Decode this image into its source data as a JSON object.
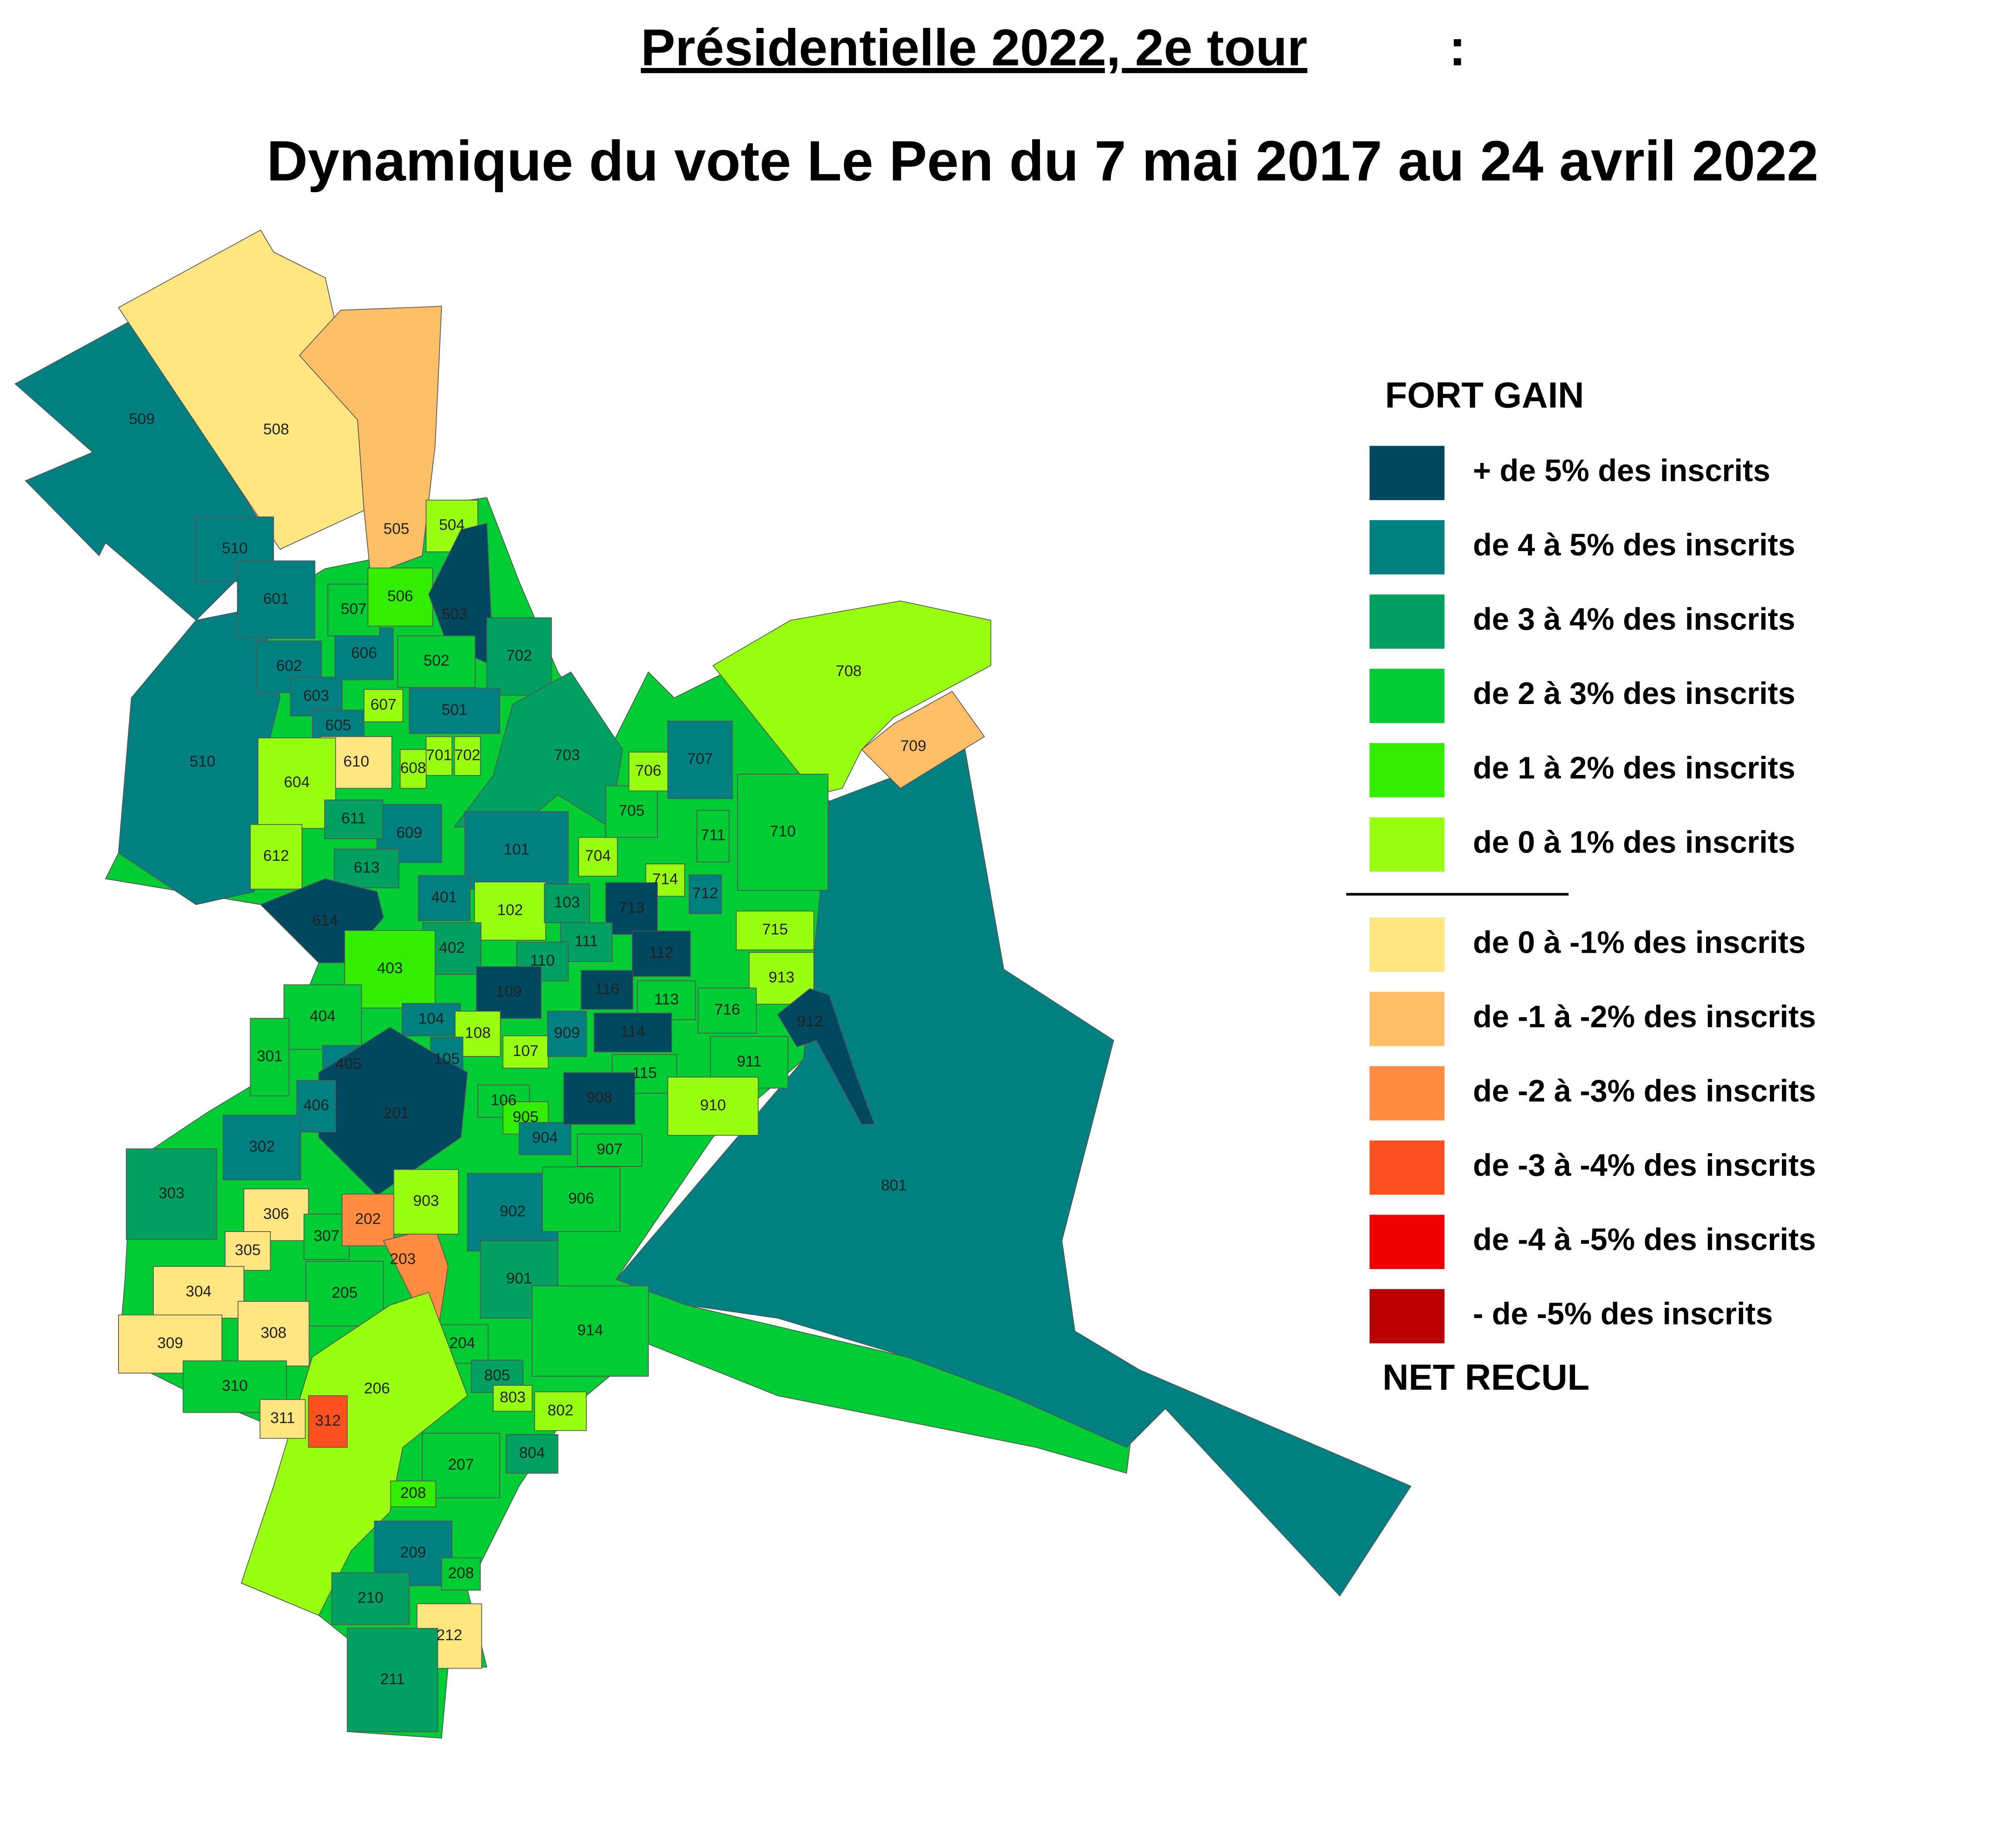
{
  "title": "Présidentielle 2022, 2e tour",
  "title_colon": ":",
  "subtitle": "Dynamique du vote Le Pen du 7 mai 2017 au 24 avril 2022",
  "legend": {
    "header": "FORT GAIN",
    "footer": "NET RECUL",
    "gains": [
      {
        "label": "+ de 5% des inscrits",
        "color": "#004860"
      },
      {
        "label": "de 4 à 5% des inscrits",
        "color": "#008080"
      },
      {
        "label": "de 3 à 4% des inscrits",
        "color": "#00a060"
      },
      {
        "label": "de 2 à 3% des inscrits",
        "color": "#00cc33"
      },
      {
        "label": "de 1 à 2% des inscrits",
        "color": "#33ee00"
      },
      {
        "label": "de 0 à 1% des inscrits",
        "color": "#99ff11"
      }
    ],
    "losses": [
      {
        "label": "de 0 à -1% des inscrits",
        "color": "#ffe680"
      },
      {
        "label": "de -1 à -2% des inscrits",
        "color": "#ffbf66"
      },
      {
        "label": "de -2 à -3% des inscrits",
        "color": "#ff8c40"
      },
      {
        "label": "de -3 à -4% des inscrits",
        "color": "#ff5020"
      },
      {
        "label": "de -4 à -5% des inscrits",
        "color": "#ee0000"
      },
      {
        "label": "- de -5% des inscrits",
        "color": "#bb0000"
      }
    ]
  },
  "districts": [
    {
      "label": "509",
      "color": "#008080"
    },
    {
      "label": "508",
      "color": "#ffe680"
    },
    {
      "label": "505",
      "color": "#ffbf66"
    },
    {
      "label": "801",
      "color": "#008080"
    },
    {
      "label": "708",
      "color": "#99ff11"
    },
    {
      "label": "709",
      "color": "#ffbf66"
    },
    {
      "label": "510",
      "color": "#008080"
    },
    {
      "label": "510",
      "color": "#008080"
    },
    {
      "label": "601",
      "color": "#008080"
    },
    {
      "label": "602",
      "color": "#008080"
    },
    {
      "label": "603",
      "color": "#008080"
    },
    {
      "label": "605",
      "color": "#008080"
    },
    {
      "label": "606",
      "color": "#008080"
    },
    {
      "label": "507",
      "color": "#00cc33"
    },
    {
      "label": "506",
      "color": "#33ee00"
    },
    {
      "label": "504",
      "color": "#99ff11"
    },
    {
      "label": "503",
      "color": "#004860"
    },
    {
      "label": "502",
      "color": "#00cc33"
    },
    {
      "label": "702",
      "color": "#00a060"
    },
    {
      "label": "607",
      "color": "#99ff11"
    },
    {
      "label": "501",
      "color": "#008080"
    },
    {
      "label": "610",
      "color": "#ffe680"
    },
    {
      "label": "604",
      "color": "#99ff11"
    },
    {
      "label": "608",
      "color": "#99ff11"
    },
    {
      "label": "701",
      "color": "#99ff11"
    },
    {
      "label": "702",
      "color": "#99ff11"
    },
    {
      "label": "703",
      "color": "#00a060"
    },
    {
      "label": "101",
      "color": "#008080"
    },
    {
      "label": "609",
      "color": "#008080"
    },
    {
      "label": "611",
      "color": "#00a060"
    },
    {
      "label": "612",
      "color": "#99ff11"
    },
    {
      "label": "613",
      "color": "#00a060"
    },
    {
      "label": "614",
      "color": "#004860"
    },
    {
      "label": "401",
      "color": "#008080"
    },
    {
      "label": "102",
      "color": "#99ff11"
    },
    {
      "label": "103",
      "color": "#00a060"
    },
    {
      "label": "704",
      "color": "#99ff11"
    },
    {
      "label": "705",
      "color": "#00cc33"
    },
    {
      "label": "706",
      "color": "#99ff11"
    },
    {
      "label": "707",
      "color": "#008080"
    },
    {
      "label": "711",
      "color": "#00cc33"
    },
    {
      "label": "714",
      "color": "#99ff11"
    },
    {
      "label": "712",
      "color": "#008080"
    },
    {
      "label": "713",
      "color": "#004860"
    },
    {
      "label": "710",
      "color": "#00cc33"
    },
    {
      "label": "715",
      "color": "#99ff11"
    },
    {
      "label": "111",
      "color": "#00a060"
    },
    {
      "label": "112",
      "color": "#004860"
    },
    {
      "label": "110",
      "color": "#00a060"
    },
    {
      "label": "402",
      "color": "#00a060"
    },
    {
      "label": "403",
      "color": "#33ee00"
    },
    {
      "label": "109",
      "color": "#004860"
    },
    {
      "label": "116",
      "color": "#004860"
    },
    {
      "label": "113",
      "color": "#00cc33"
    },
    {
      "label": "913",
      "color": "#99ff11"
    },
    {
      "label": "716",
      "color": "#00cc33"
    },
    {
      "label": "912",
      "color": "#004860"
    },
    {
      "label": "114",
      "color": "#004860"
    },
    {
      "label": "404",
      "color": "#00cc33"
    },
    {
      "label": "104",
      "color": "#008080"
    },
    {
      "label": "108",
      "color": "#99ff11"
    },
    {
      "label": "105",
      "color": "#008080"
    },
    {
      "label": "107",
      "color": "#99ff11"
    },
    {
      "label": "909",
      "color": "#008080"
    },
    {
      "label": "115",
      "color": "#00cc33"
    },
    {
      "label": "911",
      "color": "#00cc33"
    },
    {
      "label": "910",
      "color": "#99ff11"
    },
    {
      "label": "301",
      "color": "#00cc33"
    },
    {
      "label": "405",
      "color": "#008080"
    },
    {
      "label": "201",
      "color": "#004860"
    },
    {
      "label": "406",
      "color": "#008080"
    },
    {
      "label": "106",
      "color": "#00cc33"
    },
    {
      "label": "905",
      "color": "#33ee00"
    },
    {
      "label": "904",
      "color": "#008080"
    },
    {
      "label": "908",
      "color": "#004860"
    },
    {
      "label": "907",
      "color": "#00cc33"
    },
    {
      "label": "302",
      "color": "#008080"
    },
    {
      "label": "303",
      "color": "#00a060"
    },
    {
      "label": "306",
      "color": "#ffe680"
    },
    {
      "label": "305",
      "color": "#ffe680"
    },
    {
      "label": "304",
      "color": "#ffe680"
    },
    {
      "label": "307",
      "color": "#00cc33"
    },
    {
      "label": "202",
      "color": "#ff8c40"
    },
    {
      "label": "203",
      "color": "#ff8c40"
    },
    {
      "label": "903",
      "color": "#99ff11"
    },
    {
      "label": "902",
      "color": "#008080"
    },
    {
      "label": "906",
      "color": "#00cc33"
    },
    {
      "label": "205",
      "color": "#00cc33"
    },
    {
      "label": "901",
      "color": "#00a060"
    },
    {
      "label": "309",
      "color": "#ffe680"
    },
    {
      "label": "308",
      "color": "#ffe680"
    },
    {
      "label": "204",
      "color": "#00cc33"
    },
    {
      "label": "914",
      "color": "#00cc33"
    },
    {
      "label": "805",
      "color": "#00a060"
    },
    {
      "label": "803",
      "color": "#99ff11"
    },
    {
      "label": "802",
      "color": "#99ff11"
    },
    {
      "label": "310",
      "color": "#00cc33"
    },
    {
      "label": "206",
      "color": "#99ff11"
    },
    {
      "label": "311",
      "color": "#ffe680"
    },
    {
      "label": "312",
      "color": "#ff5020"
    },
    {
      "label": "207",
      "color": "#00cc33"
    },
    {
      "label": "804",
      "color": "#00a060"
    },
    {
      "label": "208",
      "color": "#33ee00"
    },
    {
      "label": "209",
      "color": "#008080"
    },
    {
      "label": "208",
      "color": "#00cc33"
    },
    {
      "label": "210",
      "color": "#00a060"
    },
    {
      "label": "212",
      "color": "#ffe680"
    },
    {
      "label": "211",
      "color": "#00a060"
    }
  ]
}
